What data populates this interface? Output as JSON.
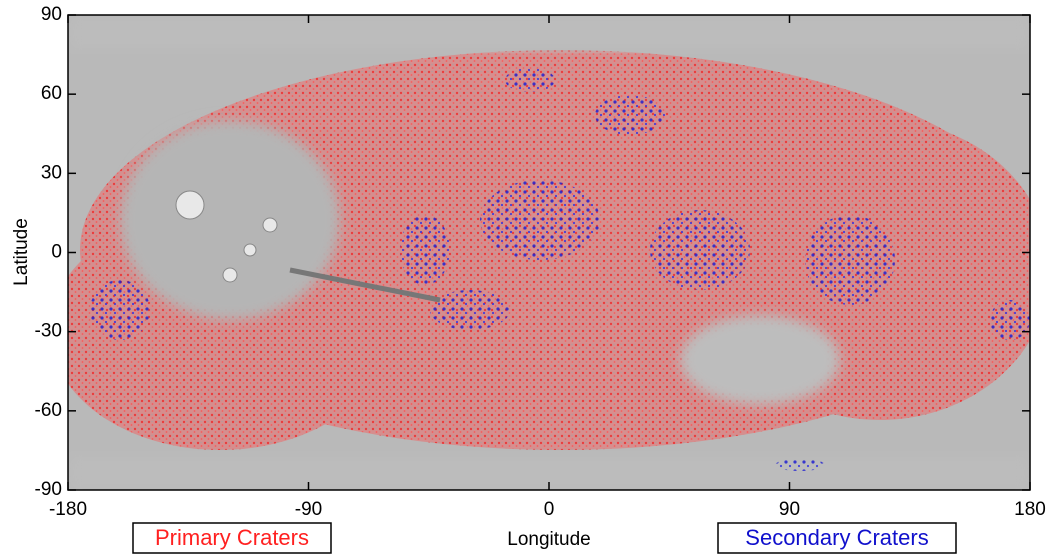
{
  "map": {
    "xlabel": "Longitude",
    "ylabel": "Latitude",
    "xlim": [
      -180,
      180
    ],
    "ylim": [
      -90,
      90
    ],
    "xticks": [
      -180,
      -90,
      0,
      90,
      180
    ],
    "yticks": [
      -90,
      -60,
      -30,
      0,
      30,
      60,
      90
    ],
    "legend": [
      {
        "label": "Primary Craters",
        "color": "#ff2020"
      },
      {
        "label": "Secondary Craters",
        "color": "#1010cc"
      }
    ]
  }
}
